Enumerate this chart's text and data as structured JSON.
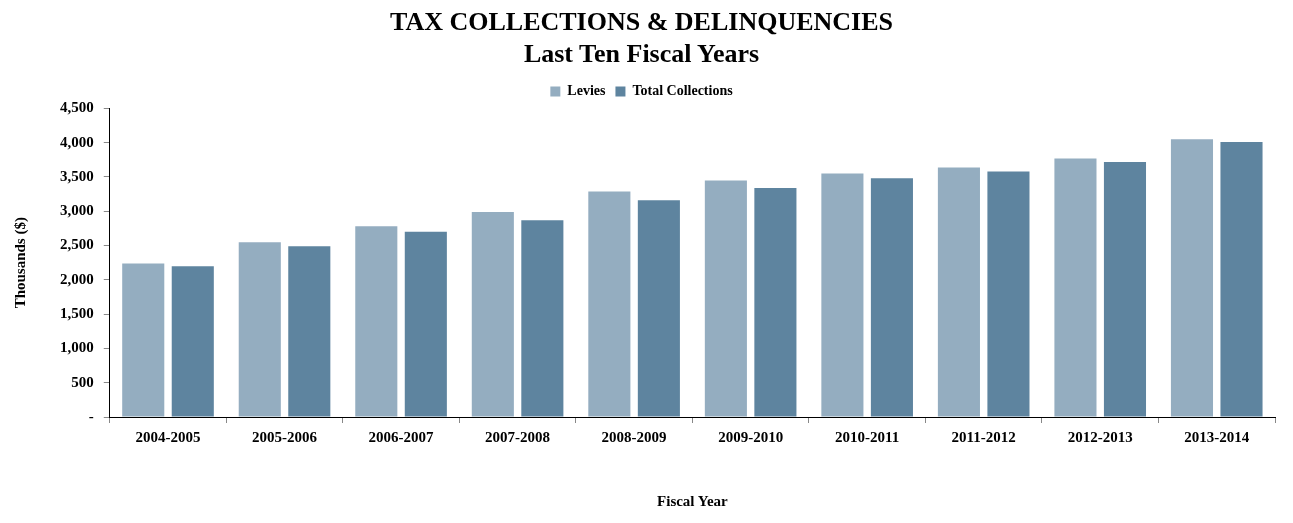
{
  "chart_data": {
    "type": "bar",
    "title": [
      "TAX COLLECTIONS & DELINQUENCIES",
      "Last Ten Fiscal Years"
    ],
    "xlabel": "Fiscal Year",
    "ylabel": "Thousands ($)",
    "categories": [
      "2004-2005",
      "2005-2006",
      "2006-2007",
      "2007-2008",
      "2008-2009",
      "2009-2010",
      "2010-2011",
      "2011-2012",
      "2012-2013",
      "2013-2014"
    ],
    "series": [
      {
        "name": "Levies",
        "color": "#94adc0",
        "values": [
          2240,
          2550,
          2780,
          2990,
          3290,
          3450,
          3550,
          3640,
          3770,
          4050
        ]
      },
      {
        "name": "Total Collections",
        "color": "#5e849f",
        "values": [
          2200,
          2490,
          2700,
          2870,
          3160,
          3340,
          3480,
          3580,
          3720,
          4010
        ]
      }
    ],
    "ylim": [
      0,
      4500
    ],
    "yticks": [
      {
        "value": 0,
        "label": "-"
      },
      500,
      {
        "value": 1000,
        "label": "1,000"
      },
      {
        "value": 1500,
        "label": "1,500"
      },
      {
        "value": 2000,
        "label": "2,000"
      },
      {
        "value": 2500,
        "label": "2,500"
      },
      {
        "value": 3000,
        "label": "3,000"
      },
      {
        "value": 3500,
        "label": "3,500"
      },
      {
        "value": 4000,
        "label": "4,000"
      },
      {
        "value": 4500,
        "label": "4,500"
      }
    ],
    "grid": false,
    "legend": "top"
  }
}
